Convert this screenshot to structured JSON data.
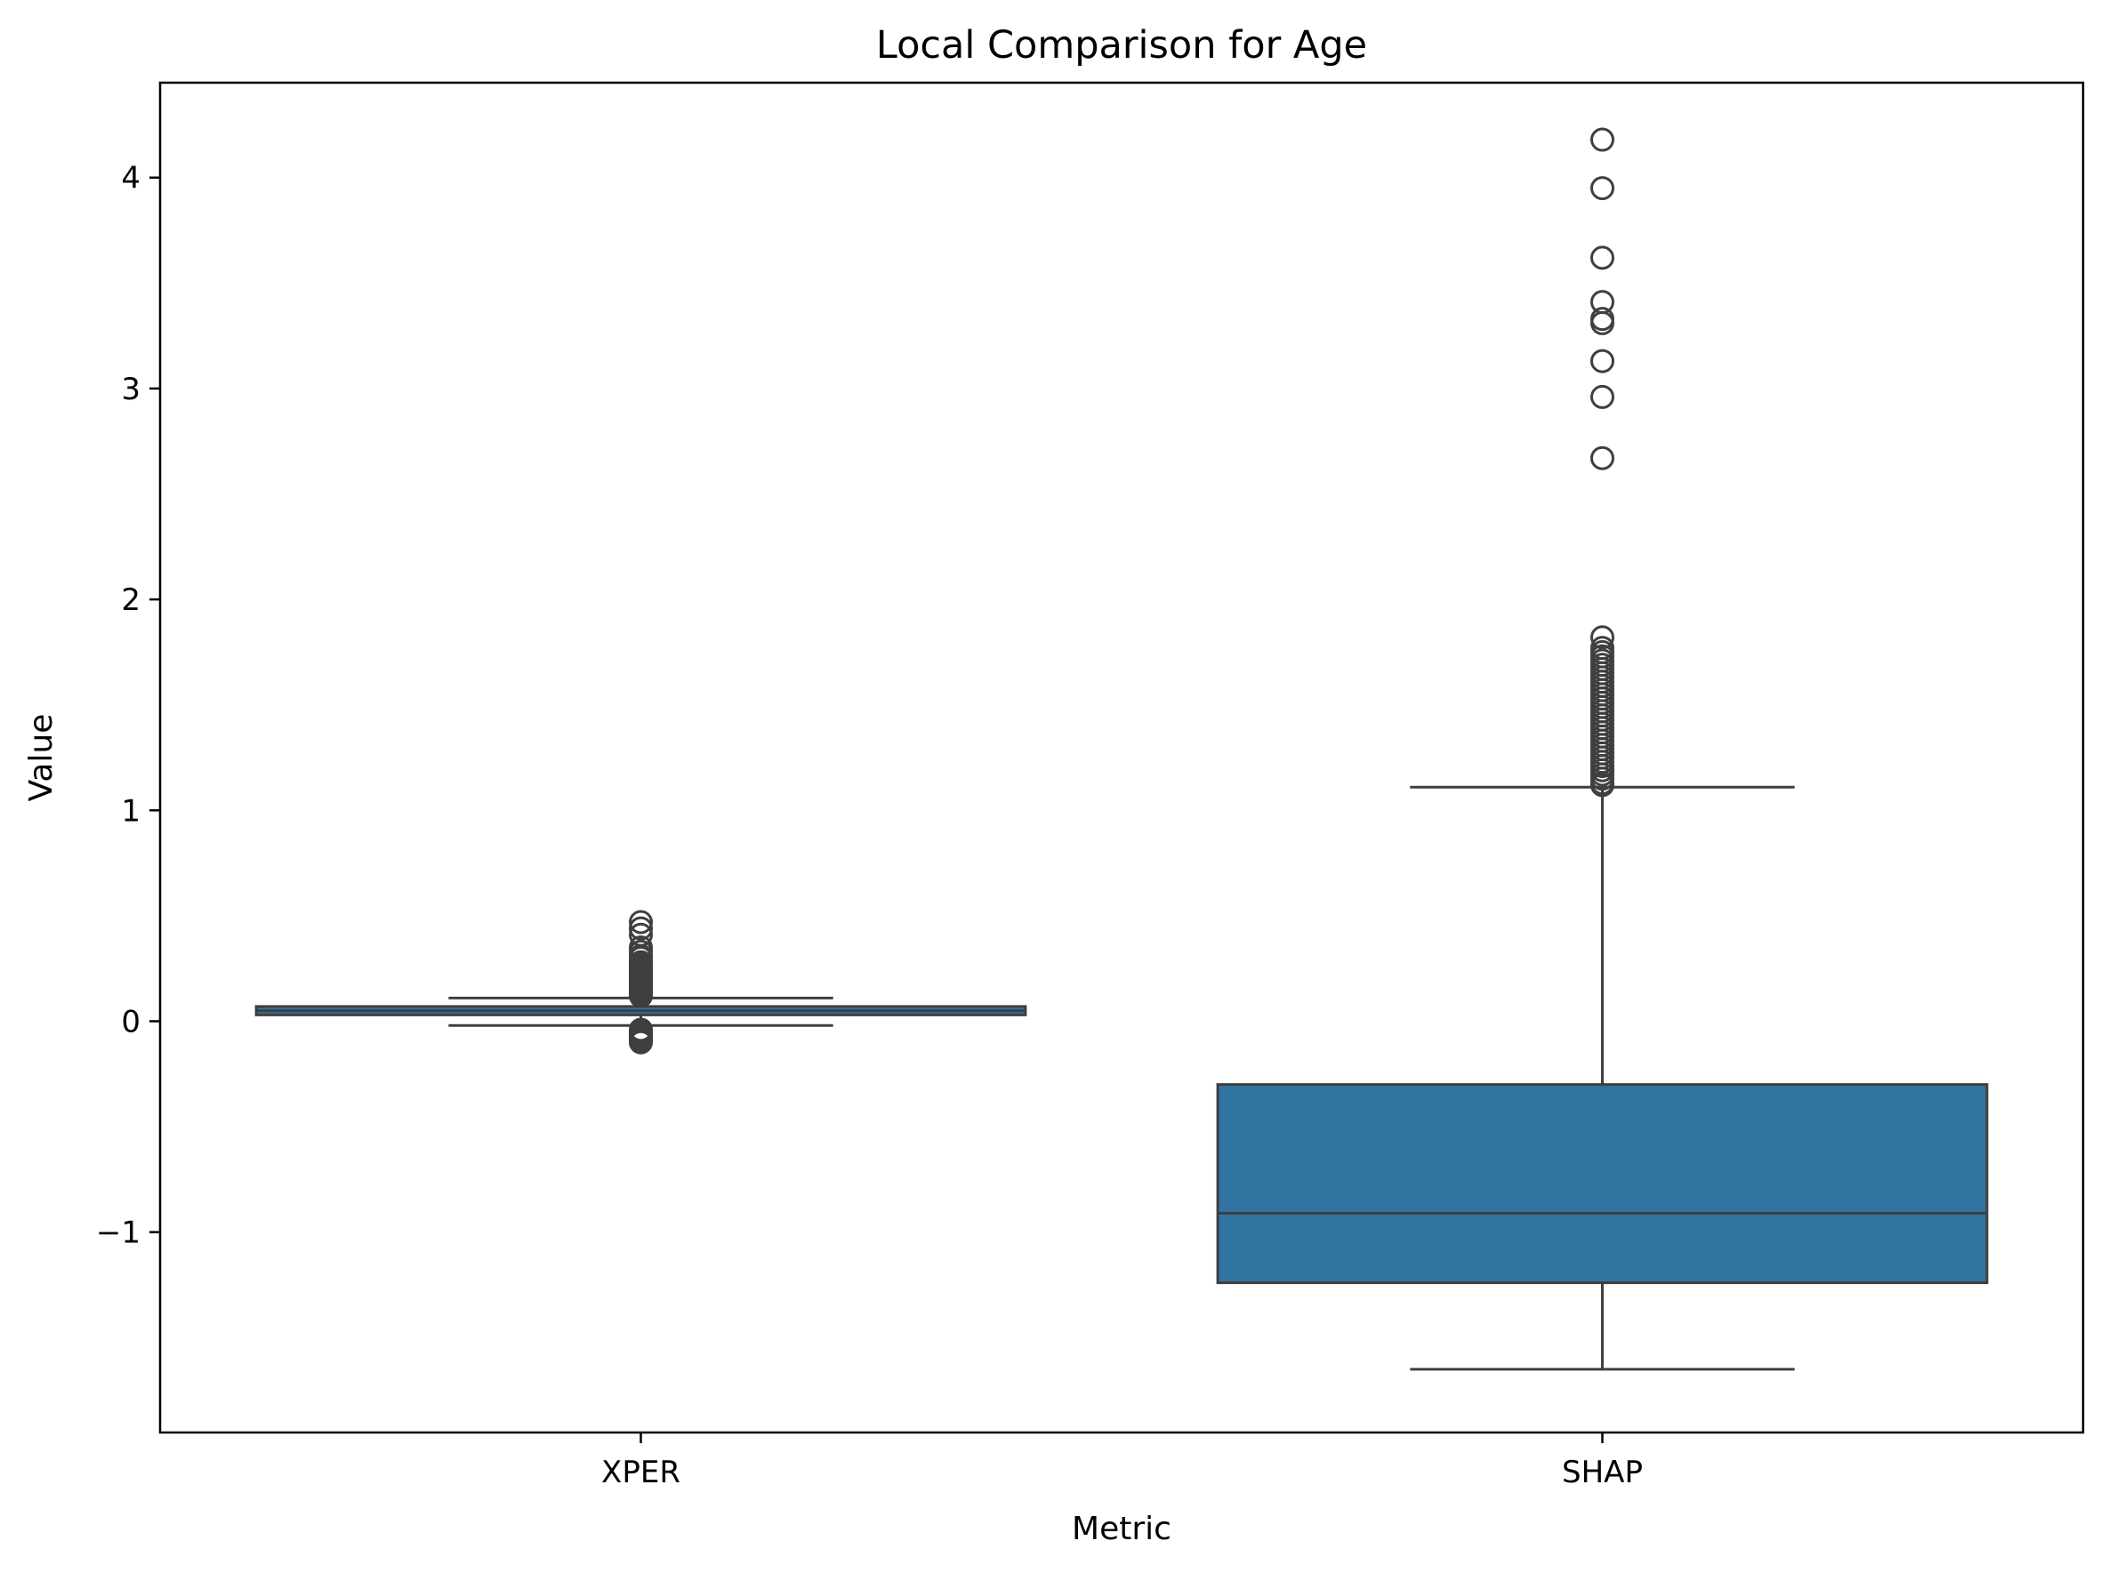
{
  "chart_data": {
    "type": "box",
    "title": "Local Comparison for Age",
    "xlabel": "Metric",
    "ylabel": "Value",
    "categories": [
      "XPER",
      "SHAP"
    ],
    "ylim": [
      -1.95,
      4.45
    ],
    "yticks": [
      {
        "value": -1,
        "label": "−1"
      },
      {
        "value": 0,
        "label": "0"
      },
      {
        "value": 1,
        "label": "1"
      },
      {
        "value": 2,
        "label": "2"
      },
      {
        "value": 3,
        "label": "3"
      },
      {
        "value": 4,
        "label": "4"
      }
    ],
    "grid": false,
    "box_color": "#3274a1",
    "line_color": "#3f3f3f",
    "boxes": [
      {
        "name": "XPER",
        "whisker_low": -0.02,
        "q1": 0.03,
        "median": 0.05,
        "q3": 0.07,
        "whisker_high": 0.11,
        "outliers": [
          0.47,
          0.44,
          0.41,
          0.35,
          0.33,
          0.31,
          0.3,
          0.28,
          0.27,
          0.26,
          0.25,
          0.24,
          0.23,
          0.22,
          0.21,
          0.2,
          0.19,
          0.18,
          0.17,
          0.16,
          0.15,
          0.14,
          0.13,
          0.12,
          -0.04,
          -0.05,
          -0.06,
          -0.07,
          -0.08,
          -0.09,
          -0.1
        ]
      },
      {
        "name": "SHAP",
        "whisker_low": -1.65,
        "q1": -1.24,
        "median": -0.91,
        "q3": -0.3,
        "whisker_high": 1.11,
        "outliers": [
          4.18,
          3.95,
          3.62,
          3.41,
          3.33,
          3.31,
          3.13,
          2.96,
          2.67,
          1.82,
          1.77,
          1.75,
          1.73,
          1.71,
          1.69,
          1.67,
          1.65,
          1.63,
          1.61,
          1.59,
          1.57,
          1.55,
          1.53,
          1.51,
          1.49,
          1.47,
          1.45,
          1.43,
          1.41,
          1.39,
          1.37,
          1.35,
          1.33,
          1.31,
          1.29,
          1.27,
          1.25,
          1.23,
          1.21,
          1.19,
          1.17,
          1.15,
          1.13,
          1.12
        ]
      }
    ]
  }
}
